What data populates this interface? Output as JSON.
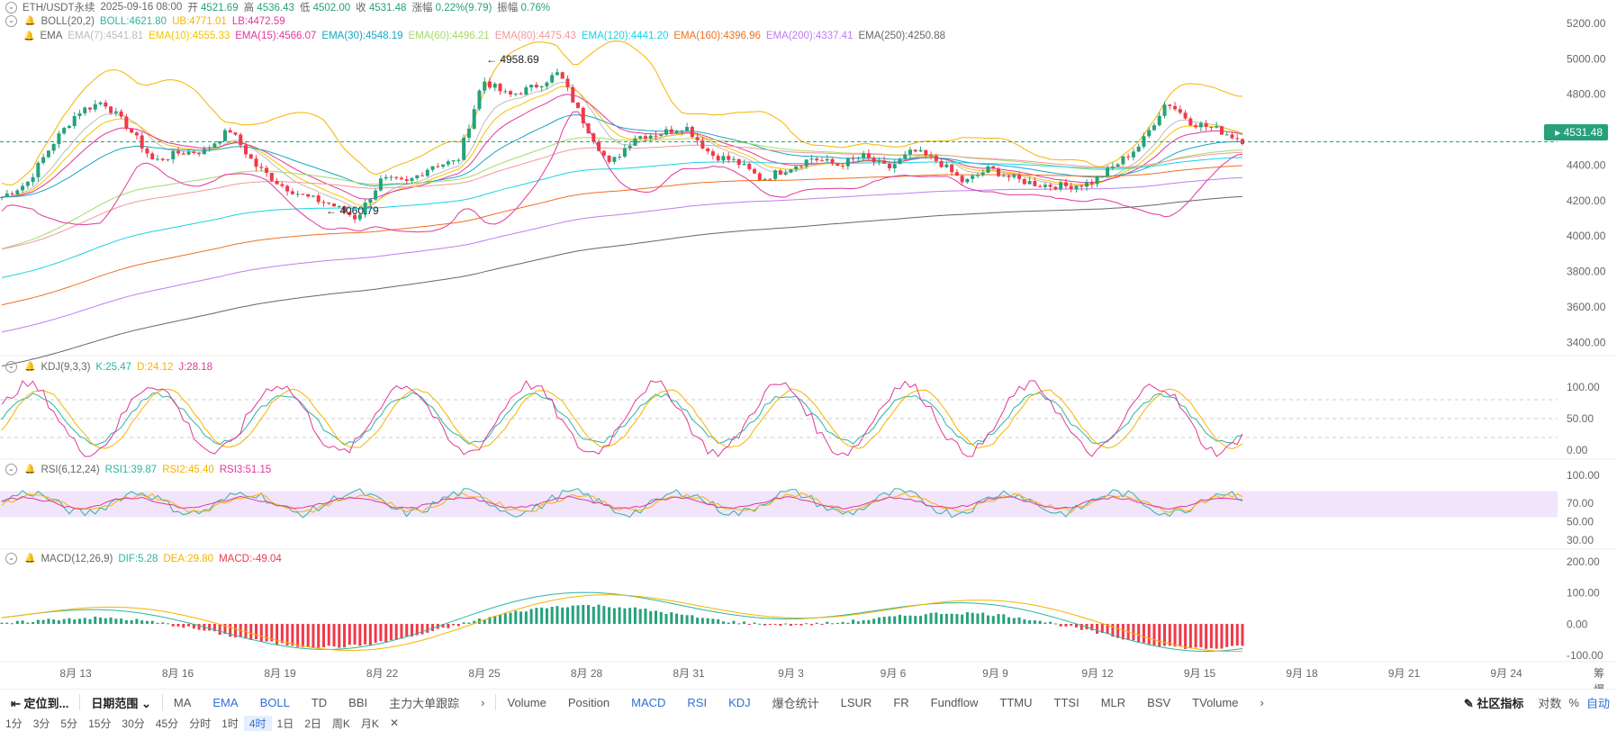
{
  "header": {
    "symbol": "ETH/USDT永续",
    "datetime": "2025-09-16 08:00",
    "open_label": "开",
    "open": "4521.69",
    "high_label": "高",
    "high": "4536.43",
    "low_label": "低",
    "low": "4502.00",
    "close_label": "收",
    "close": "4531.48",
    "change_label": "涨幅",
    "change": "0.22%(9.79)",
    "amp_label": "振幅",
    "amp": "0.76%"
  },
  "boll": {
    "name": "BOLL(20,2)",
    "mid": "BOLL:4621.80",
    "ub": "UB:4771.01",
    "lb": "LB:4472.59"
  },
  "ema": {
    "name": "EMA",
    "items": [
      {
        "label": "EMA(7):4541.81",
        "color": "#bbbbbb"
      },
      {
        "label": "EMA(10):4555.33",
        "color": "#f5c400"
      },
      {
        "label": "EMA(15):4566.07",
        "color": "#e0389a"
      },
      {
        "label": "EMA(30):4548.19",
        "color": "#1aa7c4"
      },
      {
        "label": "EMA(60):4496.21",
        "color": "#a6d86a"
      },
      {
        "label": "EMA(80):4475.43",
        "color": "#f29999"
      },
      {
        "label": "EMA(120):4441.20",
        "color": "#19d3e6"
      },
      {
        "label": "EMA(160):4396.96",
        "color": "#f07020"
      },
      {
        "label": "EMA(200):4337.41",
        "color": "#c07ef0"
      },
      {
        "label": "EMA(250):4250.88",
        "color": "#666666"
      }
    ]
  },
  "annotations": {
    "high_marker": "4958.69",
    "low_marker": "4060.79",
    "current_price": "4531.48"
  },
  "kdj": {
    "name": "KDJ(9,3,3)",
    "k": "K:25.47",
    "d": "D:24.12",
    "j": "J:28.18"
  },
  "rsi": {
    "name": "RSI(6,12,24)",
    "r1": "RSI1:39.87",
    "r2": "RSI2:45.40",
    "r3": "RSI3:51.15"
  },
  "macd": {
    "name": "MACD(12,26,9)",
    "dif": "DIF:5.28",
    "dea": "DEA:29.80",
    "macd": "MACD:-49.04"
  },
  "chart_data": {
    "type": "candlestick",
    "price_axis": {
      "ticks": [
        "5200.00",
        "5000.00",
        "4800.00",
        "4600.00",
        "4400.00",
        "4200.00",
        "4000.00",
        "3800.00",
        "3600.00",
        "3400.00"
      ],
      "range": [
        3300,
        5230
      ]
    },
    "x_labels": [
      "8月 13",
      "8月 16",
      "8月 19",
      "8月 22",
      "8月 25",
      "8月 28",
      "8月 31",
      "9月 3",
      "9月 6",
      "9月 9",
      "9月 12",
      "9月 15",
      "9月 18",
      "9月 21",
      "9月 24"
    ],
    "close_path": [
      4220,
      4300,
      4520,
      4700,
      4760,
      4610,
      4420,
      4470,
      4480,
      4600,
      4400,
      4290,
      4220,
      4180,
      4100,
      4320,
      4300,
      4400,
      4420,
      4880,
      4790,
      4840,
      4920,
      4640,
      4400,
      4560,
      4580,
      4620,
      4460,
      4420,
      4320,
      4380,
      4440,
      4400,
      4450,
      4380,
      4480,
      4420,
      4300,
      4380,
      4320,
      4290,
      4280,
      4300,
      4400,
      4520,
      4760,
      4640,
      4600,
      4540
    ],
    "kdj_axis": {
      "ticks": [
        "100.00",
        "50.00",
        "0.00"
      ]
    },
    "rsi_axis": {
      "ticks": [
        "100.00",
        "70.00",
        "50.00",
        "30.00"
      ]
    },
    "macd_axis": {
      "ticks": [
        "200.00",
        "100.00",
        "0.00",
        "-100.00"
      ]
    }
  },
  "toolbar1": {
    "locate": "定位到...",
    "date_range": "日期范围",
    "indicators_left": [
      "MA",
      "EMA",
      "BOLL",
      "TD",
      "BBI",
      "主力大单跟踪"
    ],
    "indicators_right": [
      "Volume",
      "Position",
      "MACD",
      "RSI",
      "KDJ",
      "爆仓统计",
      "LSUR",
      "FR",
      "Fundflow",
      "TTMU",
      "TTSI",
      "MLR",
      "BSV",
      "TVolume"
    ],
    "community": "社区指标",
    "log": "对数",
    "pct": "%",
    "auto": "自动"
  },
  "toolbar2": {
    "intervals": [
      "1分",
      "3分",
      "5分",
      "15分",
      "30分",
      "45分",
      "分时",
      "1时",
      "4时",
      "1日",
      "2日",
      "周K",
      "月K",
      "✕"
    ],
    "active": "4时"
  },
  "colors": {
    "up": "#26a17b",
    "down": "#f0394a",
    "accent": "#2f6fd6"
  },
  "corner": {
    "a": "筹",
    "b": "爆"
  }
}
